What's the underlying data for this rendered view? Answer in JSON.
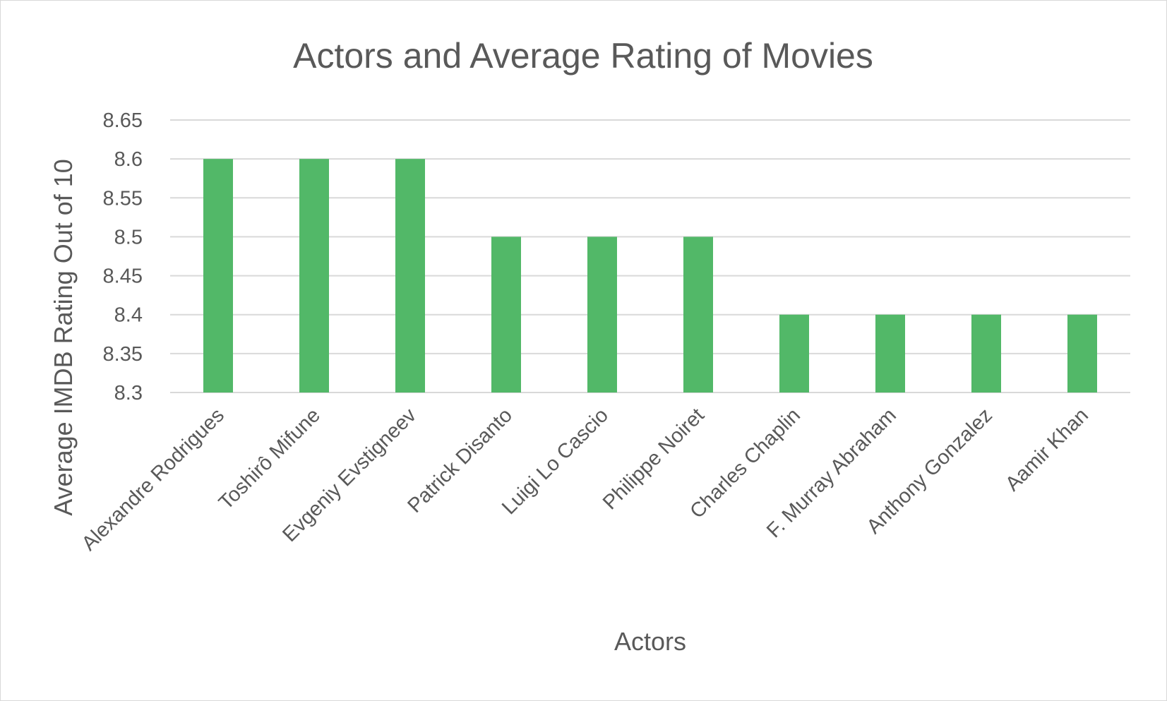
{
  "chart_data": {
    "type": "bar",
    "title": "Actors and Average Rating of Movies",
    "xlabel": "Actors",
    "ylabel": "Average IMDB Rating Out of 10",
    "categories": [
      "Alexandre Rodrigues",
      "Toshirô Mifune",
      "Evgeniy Evstigneev",
      "Patrick Disanto",
      "Luigi Lo Cascio",
      "Philippe Noiret",
      "Charles Chaplin",
      "F. Murray Abraham",
      "Anthony Gonzalez",
      "Aamir Khan"
    ],
    "values": [
      8.6,
      8.6,
      8.6,
      8.5,
      8.5,
      8.5,
      8.4,
      8.4,
      8.4,
      8.4
    ],
    "ylim": [
      8.3,
      8.65
    ],
    "yticks": [
      "8.3",
      "8.35",
      "8.4",
      "8.45",
      "8.5",
      "8.55",
      "8.6",
      "8.65"
    ],
    "grid": true,
    "colors": {
      "bar": "#52b868",
      "text": "#595959",
      "grid": "#d9d9d9"
    }
  }
}
